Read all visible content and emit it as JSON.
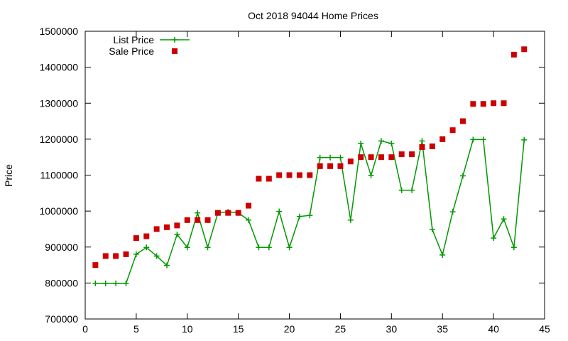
{
  "chart_data": {
    "type": "line",
    "title": "Oct 2018 94044 Home Prices",
    "xlabel": "",
    "ylabel": "Price",
    "xlim": [
      0,
      45
    ],
    "ylim": [
      700000,
      1500000
    ],
    "xticks": [
      0,
      5,
      10,
      15,
      20,
      25,
      30,
      35,
      40,
      45
    ],
    "yticks": [
      700000,
      800000,
      900000,
      1000000,
      1100000,
      1200000,
      1300000,
      1400000,
      1500000
    ],
    "grid": false,
    "legend_position": "top-left",
    "series": [
      {
        "name": "List Price",
        "style": "lines+points",
        "marker": "plus",
        "color": "#009900",
        "x": [
          1,
          2,
          3,
          4,
          5,
          6,
          7,
          8,
          9,
          10,
          11,
          12,
          13,
          14,
          15,
          16,
          17,
          18,
          19,
          20,
          21,
          22,
          23,
          24,
          25,
          26,
          27,
          28,
          29,
          30,
          31,
          32,
          33,
          34,
          35,
          36,
          37,
          38,
          39,
          40,
          41,
          42,
          43
        ],
        "y": [
          799000,
          799000,
          799000,
          799000,
          880000,
          899000,
          875000,
          849000,
          935000,
          899000,
          995000,
          899000,
          995000,
          998000,
          995000,
          975000,
          899000,
          899000,
          999000,
          899000,
          985000,
          988000,
          1149000,
          1149000,
          1149000,
          975000,
          1188000,
          1099000,
          1195000,
          1188000,
          1058000,
          1058000,
          1195000,
          949000,
          878000,
          998000,
          1098000,
          1199000,
          1199000,
          925000,
          978000,
          899000,
          1198000
        ]
      },
      {
        "name": "Sale Price",
        "style": "points",
        "marker": "square",
        "color": "#cc0000",
        "x": [
          1,
          2,
          3,
          4,
          5,
          6,
          7,
          8,
          9,
          10,
          11,
          12,
          13,
          14,
          15,
          16,
          17,
          18,
          19,
          20,
          21,
          22,
          23,
          24,
          25,
          26,
          27,
          28,
          29,
          30,
          31,
          32,
          33,
          34,
          35,
          36,
          37,
          38,
          39,
          40,
          41,
          42,
          43
        ],
        "y": [
          850000,
          875000,
          875000,
          880000,
          925000,
          930000,
          950000,
          955000,
          960000,
          975000,
          975000,
          975000,
          995000,
          995000,
          995000,
          1015000,
          1090000,
          1090000,
          1100000,
          1100000,
          1100000,
          1100000,
          1125000,
          1125000,
          1125000,
          1138000,
          1150000,
          1150000,
          1150000,
          1150000,
          1158000,
          1158000,
          1178000,
          1180000,
          1200000,
          1225000,
          1250000,
          1298000,
          1298000,
          1300000,
          1300000,
          1435000,
          1450000
        ]
      }
    ]
  }
}
